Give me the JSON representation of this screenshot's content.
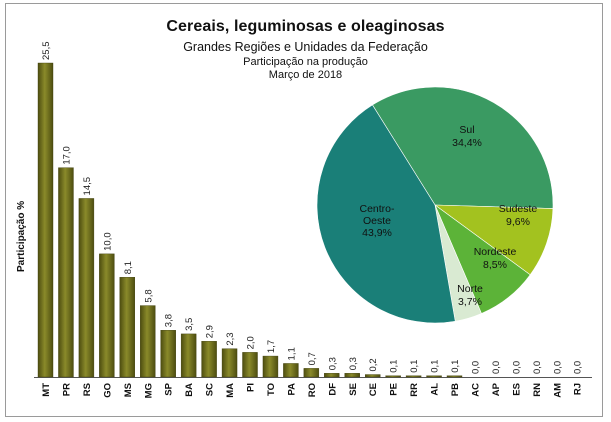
{
  "header": {
    "title": "Cereais, leguminosas e oleaginosas",
    "subtitle": "Grandes Regiões e Unidades da Federação",
    "line3": "Participação na produção",
    "line4": "Março de 2018"
  },
  "chart_data": [
    {
      "type": "bar",
      "ylabel": "Participação %",
      "ylim": [
        0,
        25.5
      ],
      "grid": false,
      "bar_color": "#6b6b1c",
      "categories": [
        "MT",
        "PR",
        "RS",
        "GO",
        "MS",
        "MG",
        "SP",
        "BA",
        "SC",
        "MA",
        "PI",
        "TO",
        "PA",
        "RO",
        "DF",
        "SE",
        "CE",
        "PE",
        "RR",
        "AL",
        "PB",
        "AC",
        "AP",
        "ES",
        "RN",
        "AM",
        "RJ"
      ],
      "values": [
        25.5,
        17.0,
        14.5,
        10.0,
        8.1,
        5.8,
        3.8,
        3.5,
        2.9,
        2.3,
        2.0,
        1.7,
        1.1,
        0.7,
        0.3,
        0.3,
        0.2,
        0.1,
        0.1,
        0.1,
        0.1,
        0.0,
        0.0,
        0.0,
        0.0,
        0.0,
        0.0
      ],
      "value_labels": [
        "25,5",
        "17,0",
        "14,5",
        "10,0",
        "8,1",
        "5,8",
        "3,8",
        "3,5",
        "2,9",
        "2,3",
        "2,0",
        "1,7",
        "1,1",
        "0,7",
        "0,3",
        "0,3",
        "0,2",
        "0,1",
        "0,1",
        "0,1",
        "0,1",
        "0,0",
        "0,0",
        "0,0",
        "0,0",
        "0,0",
        "0,0"
      ]
    },
    {
      "type": "pie",
      "slices": [
        {
          "name": "Sul",
          "value": 34.4,
          "label": "34,4%",
          "color": "#3a9a62"
        },
        {
          "name": "Sudeste",
          "value": 9.6,
          "label": "9,6%",
          "color": "#a3c21f"
        },
        {
          "name": "Nordeste",
          "value": 8.5,
          "label": "8,5%",
          "color": "#5cb338"
        },
        {
          "name": "Norte",
          "value": 3.7,
          "label": "3,7%",
          "color": "#d9ead2"
        },
        {
          "name": "Centro-Oeste",
          "value": 43.9,
          "label": "43,9%",
          "color": "#1a7f78"
        }
      ]
    }
  ]
}
